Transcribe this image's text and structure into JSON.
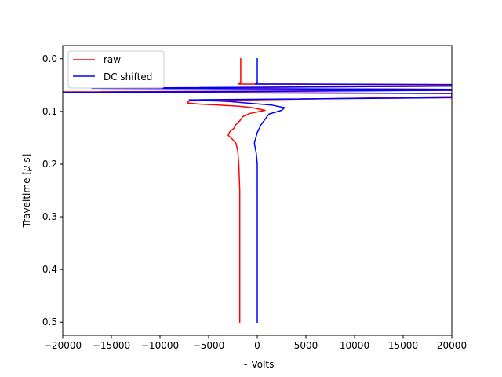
{
  "chart_data": {
    "type": "line",
    "xlabel": "~  Volts",
    "ylabel": "Traveltime [$\\mu$s]",
    "ylabel_parts": [
      "Traveltime [",
      "μ",
      " s]"
    ],
    "xlim": [
      -20000,
      20000
    ],
    "ylim": [
      0.525,
      -0.025
    ],
    "y_inverted": true,
    "grid": false,
    "legend_position": "top-left",
    "x_ticks": [
      -20000,
      -15000,
      -10000,
      -5000,
      0,
      5000,
      10000,
      15000,
      20000
    ],
    "x_tick_labels": [
      "−20000",
      "−15000",
      "−10000",
      "−5000",
      "0",
      "5000",
      "10000",
      "15000",
      "20000"
    ],
    "y_ticks": [
      0.0,
      0.1,
      0.2,
      0.3,
      0.4,
      0.5
    ],
    "y_tick_labels": [
      "0.0",
      "0.1",
      "0.2",
      "0.3",
      "0.4",
      "0.5"
    ],
    "series": [
      {
        "name": "raw",
        "color": "#ff0000",
        "points": [
          [
            -1700,
            0.0
          ],
          [
            -1700,
            0.046
          ],
          [
            -1800,
            0.047
          ],
          [
            -1900,
            0.048
          ],
          [
            1500,
            0.048
          ],
          [
            20000,
            0.05
          ],
          [
            20000,
            0.052
          ],
          [
            -16000,
            0.056
          ],
          [
            20000,
            0.058
          ],
          [
            20000,
            0.06
          ],
          [
            -20000,
            0.063
          ],
          [
            20000,
            0.066
          ],
          [
            20000,
            0.072
          ],
          [
            -7000,
            0.08
          ],
          [
            -7200,
            0.084
          ],
          [
            -6000,
            0.086
          ],
          [
            -4000,
            0.088
          ],
          [
            -2000,
            0.09
          ],
          [
            -500,
            0.093
          ],
          [
            800,
            0.098
          ],
          [
            -800,
            0.104
          ],
          [
            -1500,
            0.11
          ],
          [
            -1800,
            0.118
          ],
          [
            -2200,
            0.125
          ],
          [
            -2400,
            0.132
          ],
          [
            -2800,
            0.138
          ],
          [
            -3000,
            0.145
          ],
          [
            -2600,
            0.152
          ],
          [
            -2200,
            0.16
          ],
          [
            -2000,
            0.175
          ],
          [
            -1900,
            0.2
          ],
          [
            -1800,
            0.25
          ],
          [
            -1800,
            0.3
          ],
          [
            -1800,
            0.35
          ],
          [
            -1800,
            0.4
          ],
          [
            -1800,
            0.45
          ],
          [
            -1800,
            0.5
          ]
        ]
      },
      {
        "name": "DC shifted",
        "color": "#0000ff",
        "points": [
          [
            0,
            0.0
          ],
          [
            0,
            0.046
          ],
          [
            -100,
            0.047
          ],
          [
            -200,
            0.048
          ],
          [
            3500,
            0.048
          ],
          [
            20000,
            0.049
          ],
          [
            20000,
            0.052
          ],
          [
            -17000,
            0.056
          ],
          [
            20000,
            0.058
          ],
          [
            20000,
            0.06
          ],
          [
            -20000,
            0.064
          ],
          [
            20000,
            0.066
          ],
          [
            20000,
            0.074
          ],
          [
            -7000,
            0.078
          ],
          [
            -6000,
            0.079
          ],
          [
            -3000,
            0.081
          ],
          [
            -500,
            0.085
          ],
          [
            1500,
            0.088
          ],
          [
            2800,
            0.093
          ],
          [
            2500,
            0.098
          ],
          [
            1200,
            0.105
          ],
          [
            800,
            0.115
          ],
          [
            400,
            0.125
          ],
          [
            0,
            0.14
          ],
          [
            -300,
            0.16
          ],
          [
            -100,
            0.18
          ],
          [
            0,
            0.2
          ],
          [
            0,
            0.25
          ],
          [
            0,
            0.3
          ],
          [
            0,
            0.35
          ],
          [
            0,
            0.4
          ],
          [
            0,
            0.45
          ],
          [
            0,
            0.5
          ]
        ]
      }
    ]
  }
}
